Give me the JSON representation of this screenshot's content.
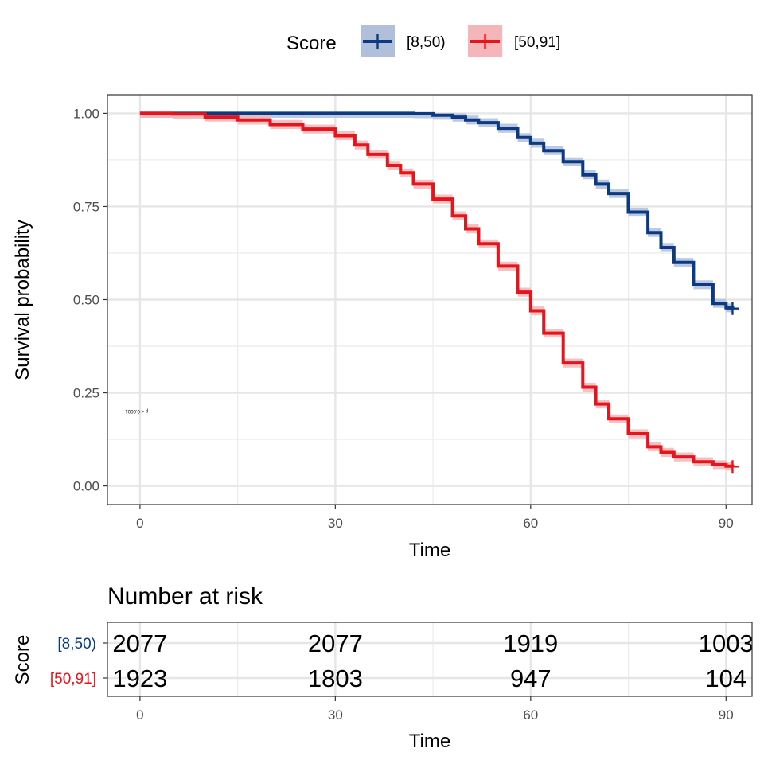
{
  "chart_data": {
    "type": "line",
    "xlabel": "Time",
    "ylabel": "Survival probability",
    "xlim": [
      -5,
      94
    ],
    "ylim": [
      -0.05,
      1.05
    ],
    "x_ticks": [
      0,
      30,
      60,
      90
    ],
    "y_ticks": [
      0.0,
      0.25,
      0.5,
      0.75,
      1.0
    ],
    "y_tick_labels": [
      "0.00",
      "0.25",
      "0.50",
      "0.75",
      "1.00"
    ],
    "grid": true,
    "legend": {
      "title": "Score",
      "position": "top"
    },
    "pvalue_text": "p < 0.0001",
    "series": [
      {
        "name": "[8,50)",
        "color": "#0b3a82",
        "fill": "#b1c0da",
        "x": [
          0,
          10,
          20,
          30,
          35,
          40,
          42,
          45,
          48,
          50,
          52,
          55,
          58,
          60,
          62,
          65,
          68,
          70,
          72,
          75,
          78,
          80,
          82,
          85,
          88,
          90,
          91
        ],
        "y": [
          1.0,
          1.0,
          1.0,
          1.0,
          1.0,
          1.0,
          0.999,
          0.995,
          0.99,
          0.982,
          0.975,
          0.96,
          0.935,
          0.92,
          0.9,
          0.87,
          0.835,
          0.81,
          0.785,
          0.735,
          0.68,
          0.64,
          0.6,
          0.54,
          0.49,
          0.478,
          0.476
        ],
        "censor_x": 91,
        "censor_y": 0.476
      },
      {
        "name": "[50,91]",
        "color": "#e8141b",
        "fill": "#f4b6b9",
        "x": [
          0,
          5,
          10,
          15,
          20,
          25,
          30,
          33,
          35,
          38,
          40,
          42,
          45,
          48,
          50,
          52,
          55,
          58,
          60,
          62,
          65,
          68,
          70,
          72,
          75,
          78,
          80,
          82,
          85,
          88,
          90,
          91
        ],
        "y": [
          1.0,
          0.998,
          0.99,
          0.982,
          0.97,
          0.958,
          0.94,
          0.915,
          0.89,
          0.86,
          0.84,
          0.81,
          0.77,
          0.725,
          0.69,
          0.65,
          0.59,
          0.52,
          0.47,
          0.41,
          0.33,
          0.265,
          0.22,
          0.18,
          0.14,
          0.105,
          0.09,
          0.078,
          0.065,
          0.057,
          0.053,
          0.052
        ],
        "censor_x": 91,
        "censor_y": 0.052
      }
    ],
    "risk_table": {
      "title": "Number at risk",
      "ylabel": "Score",
      "xlabel": "Time",
      "times": [
        0,
        30,
        60,
        90
      ],
      "groups": [
        {
          "name": "[8,50)",
          "color": "#0b3a82",
          "counts": [
            "2077",
            "2077",
            "1919",
            "1003"
          ]
        },
        {
          "name": "[50,91]",
          "color": "#e8141b",
          "counts": [
            "1923",
            "1803",
            "947",
            "104"
          ]
        }
      ]
    }
  }
}
